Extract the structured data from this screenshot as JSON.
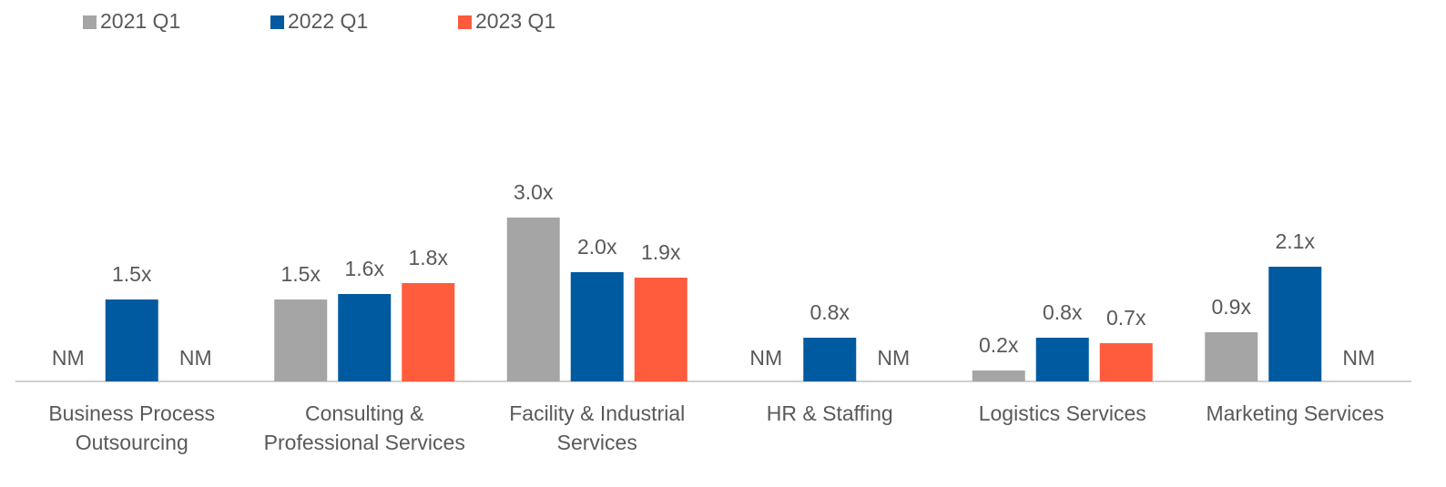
{
  "chart_data": {
    "type": "bar",
    "categories": [
      "Business Process Outsourcing",
      "Consulting & Professional Services",
      "Facility & Industrial Services",
      "HR & Staffing",
      "Logistics Services",
      "Marketing Services"
    ],
    "series": [
      {
        "name": "2021 Q1",
        "color": "#a5a5a5",
        "values": [
          null,
          1.5,
          3.0,
          null,
          0.2,
          0.9
        ],
        "value_labels": [
          "NM",
          "1.5x",
          "3.0x",
          "NM",
          "0.2x",
          "0.9x"
        ]
      },
      {
        "name": "2022 Q1",
        "color": "#005aa0",
        "values": [
          1.5,
          1.6,
          2.0,
          0.8,
          0.8,
          2.1
        ],
        "value_labels": [
          "1.5x",
          "1.6x",
          "2.0x",
          "0.8x",
          "0.8x",
          "2.1x"
        ]
      },
      {
        "name": "2023 Q1",
        "color": "#ff5b3d",
        "values": [
          null,
          1.8,
          1.9,
          null,
          0.7,
          null
        ],
        "value_labels": [
          "NM",
          "1.8x",
          "1.9x",
          "NM",
          "0.7x",
          "NM"
        ]
      }
    ],
    "legend": "top-left"
  }
}
